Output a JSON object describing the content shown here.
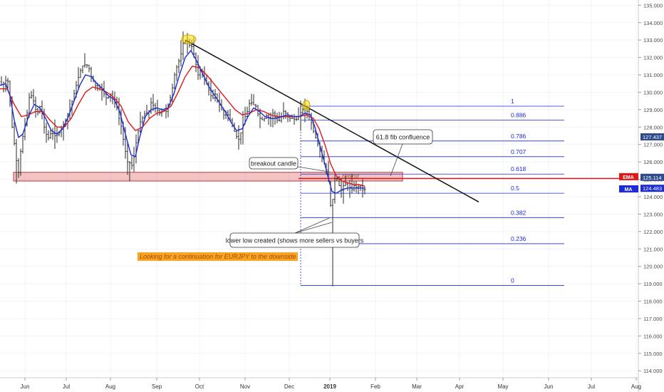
{
  "chart_data": {
    "type": "candlestick",
    "symbol": "EURJPY",
    "x_ticks": [
      {
        "label": "Jun",
        "bold": false
      },
      {
        "label": "Jul",
        "bold": false
      },
      {
        "label": "Aug",
        "bold": false
      },
      {
        "label": "Sep",
        "bold": false
      },
      {
        "label": "Oct",
        "bold": false
      },
      {
        "label": "Nov",
        "bold": false
      },
      {
        "label": "Dec",
        "bold": false
      },
      {
        "label": "2019",
        "bold": true
      },
      {
        "label": "Feb",
        "bold": false
      },
      {
        "label": "Mar",
        "bold": false
      },
      {
        "label": "Apr",
        "bold": false
      },
      {
        "label": "May",
        "bold": false
      },
      {
        "label": "Jun",
        "bold": false
      },
      {
        "label": "Jul",
        "bold": false
      },
      {
        "label": "Aug",
        "bold": false
      }
    ],
    "ylim": [
      113.6,
      135.3
    ],
    "y_ticks": [
      114,
      115,
      116,
      117,
      118,
      119,
      120,
      121,
      122,
      123,
      124,
      125,
      126,
      127,
      128,
      129,
      130,
      131,
      132,
      133,
      134,
      135
    ],
    "price_labels": [
      {
        "text": "127.437",
        "value": 127.437,
        "color": "#2f4a8a"
      },
      {
        "text": "125.114",
        "value": 125.114,
        "color": "#2f4a8a"
      },
      {
        "text": "124.483",
        "value": 124.483,
        "color": "#1c2bd6"
      }
    ],
    "indicator_tags": [
      {
        "text": "EMA",
        "color": "#e01818"
      },
      {
        "text": "MA",
        "color": "#1c2bd6"
      }
    ],
    "price_path": [
      [
        0,
        130.6
      ],
      [
        5,
        130.2
      ],
      [
        10,
        131.0
      ],
      [
        14,
        129.5
      ],
      [
        18,
        127.5
      ],
      [
        22,
        126.6
      ],
      [
        25,
        125.0
      ],
      [
        30,
        127.0
      ],
      [
        34,
        127.9
      ],
      [
        38,
        128.8
      ],
      [
        42,
        130.0
      ],
      [
        47,
        129.5
      ],
      [
        52,
        128.7
      ],
      [
        57,
        129.3
      ],
      [
        62,
        128.0
      ],
      [
        67,
        127.3
      ],
      [
        72,
        127.7
      ],
      [
        77,
        127.5
      ],
      [
        82,
        127.6
      ],
      [
        87,
        128.0
      ],
      [
        92,
        128.4
      ],
      [
        97,
        129.0
      ],
      [
        102,
        129.6
      ],
      [
        107,
        130.4
      ],
      [
        111,
        131.0
      ],
      [
        115,
        131.5
      ],
      [
        120,
        131.6
      ],
      [
        124,
        131.5
      ],
      [
        128,
        130.9
      ],
      [
        132,
        130.5
      ],
      [
        137,
        130.2
      ],
      [
        142,
        130.3
      ],
      [
        146,
        129.9
      ],
      [
        150,
        129.6
      ],
      [
        155,
        129.9
      ],
      [
        159,
        129.5
      ],
      [
        163,
        129.4
      ],
      [
        167,
        128.5
      ],
      [
        171,
        127.9
      ],
      [
        174,
        127.0
      ],
      [
        177,
        126.4
      ],
      [
        180,
        125.8
      ],
      [
        183,
        126.0
      ],
      [
        186,
        125.7
      ],
      [
        189,
        126.6
      ],
      [
        193,
        127.6
      ],
      [
        197,
        128.3
      ],
      [
        201,
        128.6
      ],
      [
        205,
        128.9
      ],
      [
        208,
        128.7
      ],
      [
        212,
        129.4
      ],
      [
        216,
        129.2
      ],
      [
        220,
        129.0
      ],
      [
        224,
        128.8
      ],
      [
        229,
        129.0
      ],
      [
        233,
        128.9
      ],
      [
        237,
        129.4
      ],
      [
        241,
        130.0
      ],
      [
        245,
        131.0
      ],
      [
        249,
        131.6
      ],
      [
        253,
        132.0
      ],
      [
        257,
        132.8
      ],
      [
        262,
        133.0
      ],
      [
        266,
        132.7
      ],
      [
        270,
        132.6
      ],
      [
        274,
        131.8
      ],
      [
        278,
        131.0
      ],
      [
        282,
        131.3
      ],
      [
        286,
        130.9
      ],
      [
        290,
        130.5
      ],
      [
        294,
        130.0
      ],
      [
        298,
        129.6
      ],
      [
        302,
        129.9
      ],
      [
        306,
        129.4
      ],
      [
        310,
        129.1
      ],
      [
        314,
        128.7
      ],
      [
        318,
        128.9
      ],
      [
        322,
        128.5
      ],
      [
        327,
        128.0
      ],
      [
        331,
        127.5
      ],
      [
        335,
        127.3
      ],
      [
        339,
        127.8
      ],
      [
        343,
        128.5
      ],
      [
        347,
        128.9
      ],
      [
        351,
        129.5
      ],
      [
        355,
        129.3
      ],
      [
        359,
        129.2
      ],
      [
        363,
        128.6
      ],
      [
        367,
        128.4
      ],
      [
        371,
        128.5
      ],
      [
        375,
        128.7
      ],
      [
        379,
        128.4
      ],
      [
        383,
        128.8
      ],
      [
        387,
        128.5
      ],
      [
        391,
        128.3
      ],
      [
        395,
        128.6
      ],
      [
        399,
        129.0
      ],
      [
        403,
        128.6
      ],
      [
        407,
        128.5
      ],
      [
        411,
        128.5
      ],
      [
        415,
        128.4
      ],
      [
        419,
        128.6
      ],
      [
        423,
        128.9
      ],
      [
        427,
        129.1
      ],
      [
        431,
        128.9
      ],
      [
        435,
        128.5
      ],
      [
        438,
        128.1
      ],
      [
        441,
        127.6
      ],
      [
        444,
        127.3
      ],
      [
        447,
        126.9
      ],
      [
        450,
        126.5
      ],
      [
        453,
        126.1
      ],
      [
        456,
        125.8
      ],
      [
        459,
        125.4
      ],
      [
        462,
        124.6
      ],
      [
        464,
        123.5
      ],
      [
        466,
        123.2
      ],
      [
        468,
        124.5
      ],
      [
        471,
        125.3
      ],
      [
        474,
        124.9
      ],
      [
        477,
        124.5
      ],
      [
        480,
        124.3
      ],
      [
        483,
        124.8
      ],
      [
        486,
        124.7
      ],
      [
        489,
        124.4
      ],
      [
        492,
        124.6
      ],
      [
        495,
        124.3
      ],
      [
        498,
        124.8
      ],
      [
        501,
        124.4
      ],
      [
        504,
        124.7
      ],
      [
        507,
        124.6
      ],
      [
        510,
        124.3
      ],
      [
        513,
        124.5
      ]
    ],
    "ma_path": [
      [
        0,
        130.4
      ],
      [
        8,
        130.5
      ],
      [
        14,
        129.8
      ],
      [
        20,
        128.4
      ],
      [
        26,
        127.4
      ],
      [
        32,
        127.6
      ],
      [
        40,
        128.6
      ],
      [
        48,
        129.3
      ],
      [
        56,
        129.1
      ],
      [
        64,
        128.5
      ],
      [
        72,
        127.8
      ],
      [
        80,
        127.6
      ],
      [
        88,
        127.9
      ],
      [
        96,
        128.6
      ],
      [
        104,
        129.5
      ],
      [
        112,
        130.4
      ],
      [
        120,
        131.0
      ],
      [
        128,
        130.9
      ],
      [
        136,
        130.5
      ],
      [
        144,
        130.2
      ],
      [
        152,
        129.8
      ],
      [
        160,
        129.6
      ],
      [
        168,
        128.9
      ],
      [
        176,
        127.6
      ],
      [
        184,
        126.4
      ],
      [
        190,
        126.3
      ],
      [
        196,
        127.4
      ],
      [
        204,
        128.6
      ],
      [
        212,
        129.0
      ],
      [
        220,
        129.1
      ],
      [
        228,
        129.0
      ],
      [
        236,
        129.1
      ],
      [
        244,
        129.9
      ],
      [
        252,
        131.0
      ],
      [
        260,
        132.0
      ],
      [
        268,
        132.4
      ],
      [
        276,
        131.8
      ],
      [
        284,
        131.1
      ],
      [
        292,
        130.4
      ],
      [
        300,
        129.9
      ],
      [
        308,
        129.4
      ],
      [
        316,
        128.9
      ],
      [
        324,
        128.3
      ],
      [
        332,
        127.8
      ],
      [
        340,
        127.9
      ],
      [
        348,
        128.6
      ],
      [
        356,
        129.1
      ],
      [
        364,
        128.9
      ],
      [
        372,
        128.6
      ],
      [
        380,
        128.5
      ],
      [
        388,
        128.5
      ],
      [
        396,
        128.6
      ],
      [
        404,
        128.7
      ],
      [
        412,
        128.6
      ],
      [
        420,
        128.6
      ],
      [
        428,
        128.8
      ],
      [
        436,
        128.7
      ],
      [
        442,
        128.0
      ],
      [
        448,
        127.1
      ],
      [
        454,
        126.2
      ],
      [
        460,
        125.2
      ],
      [
        466,
        124.3
      ],
      [
        472,
        124.2
      ],
      [
        480,
        124.4
      ],
      [
        488,
        124.5
      ],
      [
        496,
        124.5
      ],
      [
        504,
        124.5
      ],
      [
        512,
        124.5
      ]
    ],
    "ema_path": [
      [
        0,
        130.2
      ],
      [
        10,
        130.2
      ],
      [
        20,
        129.3
      ],
      [
        30,
        128.6
      ],
      [
        40,
        128.7
      ],
      [
        50,
        128.9
      ],
      [
        60,
        128.9
      ],
      [
        70,
        128.4
      ],
      [
        80,
        128.0
      ],
      [
        90,
        128.0
      ],
      [
        100,
        128.5
      ],
      [
        110,
        129.3
      ],
      [
        120,
        130.0
      ],
      [
        130,
        130.3
      ],
      [
        140,
        130.2
      ],
      [
        150,
        130.0
      ],
      [
        160,
        129.7
      ],
      [
        170,
        129.2
      ],
      [
        180,
        128.3
      ],
      [
        190,
        127.8
      ],
      [
        200,
        128.0
      ],
      [
        210,
        128.5
      ],
      [
        220,
        128.8
      ],
      [
        230,
        128.9
      ],
      [
        240,
        129.2
      ],
      [
        250,
        130.0
      ],
      [
        260,
        130.9
      ],
      [
        270,
        131.5
      ],
      [
        280,
        131.4
      ],
      [
        290,
        131.0
      ],
      [
        300,
        130.5
      ],
      [
        310,
        130.0
      ],
      [
        320,
        129.5
      ],
      [
        330,
        129.0
      ],
      [
        340,
        128.7
      ],
      [
        350,
        128.8
      ],
      [
        360,
        129.0
      ],
      [
        370,
        128.9
      ],
      [
        380,
        128.7
      ],
      [
        390,
        128.6
      ],
      [
        400,
        128.6
      ],
      [
        410,
        128.6
      ],
      [
        420,
        128.6
      ],
      [
        430,
        128.7
      ],
      [
        440,
        128.5
      ],
      [
        448,
        127.9
      ],
      [
        456,
        127.0
      ],
      [
        464,
        125.9
      ],
      [
        472,
        125.2
      ],
      [
        480,
        124.9
      ],
      [
        488,
        124.8
      ],
      [
        496,
        124.7
      ],
      [
        504,
        124.7
      ],
      [
        512,
        124.6
      ]
    ],
    "trendline": [
      [
        260,
        133.0
      ],
      [
        672,
        123.7
      ]
    ],
    "fib_levels": [
      {
        "label": "1",
        "value": 129.2
      },
      {
        "label": "0.886",
        "value": 128.4
      },
      {
        "label": "0.786",
        "value": 127.2
      },
      {
        "label": "0.707",
        "value": 126.3
      },
      {
        "label": "0.618",
        "value": 125.3
      },
      {
        "label": "0.5",
        "value": 124.2
      },
      {
        "label": "0.382",
        "value": 122.8
      },
      {
        "label": "0.236",
        "value": 121.3
      },
      {
        "label": "0",
        "value": 118.9
      }
    ],
    "support_zone": {
      "top": 125.4,
      "bottom": 124.9
    },
    "horizontal_line": {
      "value": 125.05,
      "color": "#e01818"
    },
    "annotations": {
      "breakout": "breakout candle",
      "fib_confluence": "61.8 fib confluence",
      "lower_low": "lower low created (shows more sellers vs buyers",
      "retest": "retest",
      "continuation": "Looking for a continuation for EURJPY to the downside"
    }
  }
}
